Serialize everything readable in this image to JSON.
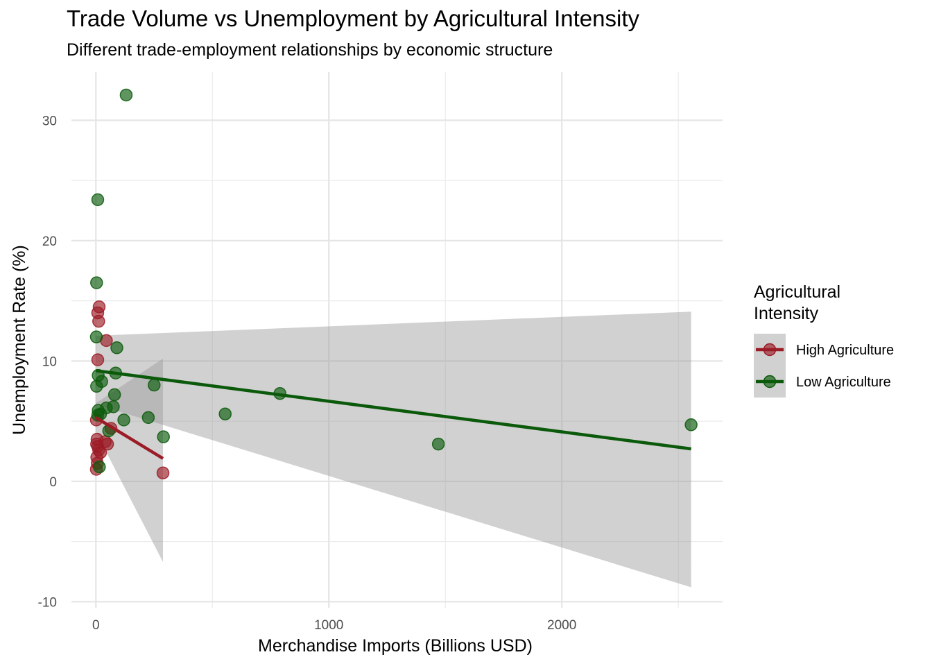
{
  "chart_data": {
    "type": "scatter",
    "title": "Trade Volume vs Unemployment by Agricultural Intensity",
    "subtitle": "Different trade-employment relationships by economic structure",
    "xlabel": "Merchandise Imports (Billions USD)",
    "ylabel": "Unemployment Rate (%)",
    "xlim": [
      -105,
      2690
    ],
    "ylim": [
      -10.5,
      34
    ],
    "x_ticks": [
      0,
      1000,
      2000
    ],
    "x_tick_labels": [
      "0",
      "1000",
      "2000"
    ],
    "y_ticks": [
      -10,
      0,
      10,
      20,
      30
    ],
    "y_tick_labels": [
      "-10",
      "0",
      "10",
      "20",
      "30"
    ],
    "grid": true,
    "legend": {
      "title": "Agricultural Intensity",
      "position": "right"
    },
    "series": [
      {
        "name": "High Agriculture",
        "color": "#9B1B26",
        "points": [
          [
            2,
            5.1
          ],
          [
            5,
            3.5
          ],
          [
            3,
            3.1
          ],
          [
            8,
            2.9
          ],
          [
            12,
            2.6
          ],
          [
            20,
            2.4
          ],
          [
            4,
            2.0
          ],
          [
            6,
            1.5
          ],
          [
            2,
            1.0
          ],
          [
            14,
            14.5
          ],
          [
            8,
            14.0
          ],
          [
            12,
            13.3
          ],
          [
            8,
            10.1
          ],
          [
            45,
            11.7
          ],
          [
            40,
            3.3
          ],
          [
            50,
            3.1
          ],
          [
            65,
            4.4
          ],
          [
            288,
            0.7
          ]
        ],
        "trend": {
          "x": [
            0,
            288
          ],
          "y": [
            5.3,
            1.9
          ],
          "ci_lower": [
            4.1,
            -6.7
          ],
          "ci_upper": [
            6.5,
            10.2
          ]
        }
      },
      {
        "name": "Low Agriculture",
        "color": "#0B5A0B",
        "points": [
          [
            130,
            32.1
          ],
          [
            8,
            23.4
          ],
          [
            3,
            16.5
          ],
          [
            2,
            12.0
          ],
          [
            90,
            11.1
          ],
          [
            10,
            8.8
          ],
          [
            25,
            8.3
          ],
          [
            3,
            7.9
          ],
          [
            85,
            9.0
          ],
          [
            80,
            7.2
          ],
          [
            250,
            8.0
          ],
          [
            790,
            7.3
          ],
          [
            10,
            5.9
          ],
          [
            45,
            6.1
          ],
          [
            75,
            6.2
          ],
          [
            120,
            5.1
          ],
          [
            225,
            5.3
          ],
          [
            555,
            5.6
          ],
          [
            20,
            5.6
          ],
          [
            8,
            5.5
          ],
          [
            55,
            4.2
          ],
          [
            290,
            3.7
          ],
          [
            1470,
            3.1
          ],
          [
            2555,
            4.7
          ],
          [
            15,
            1.2
          ]
        ],
        "trend": {
          "x": [
            0,
            2555
          ],
          "y": [
            9.2,
            2.7
          ],
          "ci_lower": [
            6.4,
            -8.8
          ],
          "ci_upper": [
            12.1,
            14.1
          ]
        }
      }
    ]
  }
}
